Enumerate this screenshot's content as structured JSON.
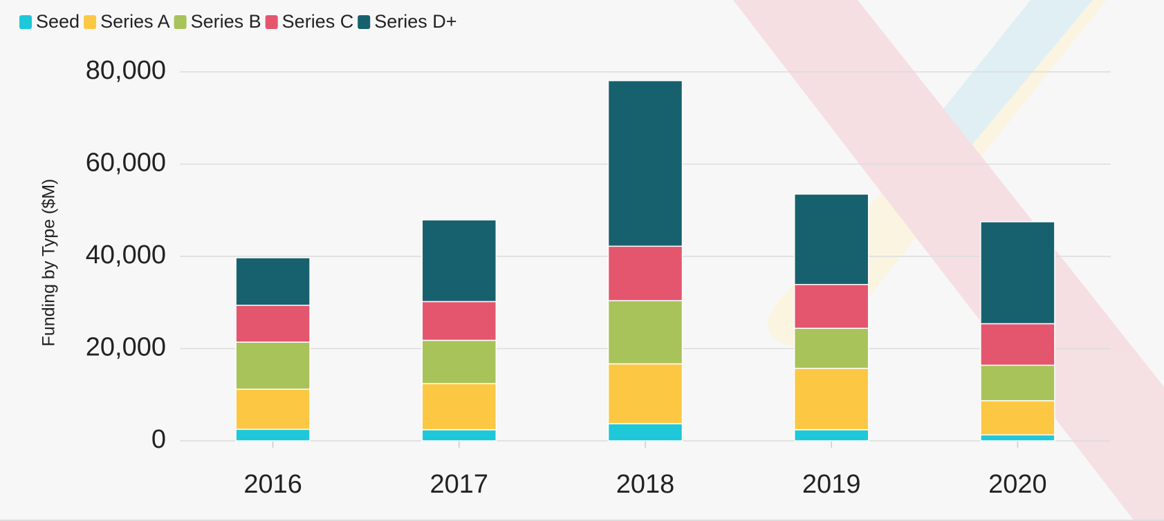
{
  "chart_data": {
    "type": "stacked_bar",
    "y_label": "Funding by Type ($M)",
    "categories": [
      "2016",
      "2017",
      "2018",
      "2019",
      "2020"
    ],
    "series": [
      {
        "name": "Seed",
        "color": "#1ec8d8",
        "values": [
          2500,
          2400,
          3700,
          2400,
          1300
        ]
      },
      {
        "name": "Series A",
        "color": "#fcc844",
        "values": [
          8700,
          10000,
          13000,
          13300,
          7400
        ]
      },
      {
        "name": "Series B",
        "color": "#a8c35a",
        "values": [
          10200,
          9400,
          13700,
          8700,
          7700
        ]
      },
      {
        "name": "Series C",
        "color": "#e3566e",
        "values": [
          8000,
          8400,
          11800,
          9500,
          9000
        ]
      },
      {
        "name": "Series D+",
        "color": "#17616e",
        "values": [
          10300,
          17700,
          35900,
          19600,
          22100
        ]
      }
    ],
    "ylim": [
      0,
      80000
    ],
    "yticks": [
      {
        "value": 0,
        "label": "0"
      },
      {
        "value": 20000,
        "label": "20,000"
      },
      {
        "value": 40000,
        "label": "40,000"
      },
      {
        "value": 60000,
        "label": "60,000"
      },
      {
        "value": 80000,
        "label": "80,000"
      }
    ],
    "grid": true,
    "legend": "top-left"
  }
}
